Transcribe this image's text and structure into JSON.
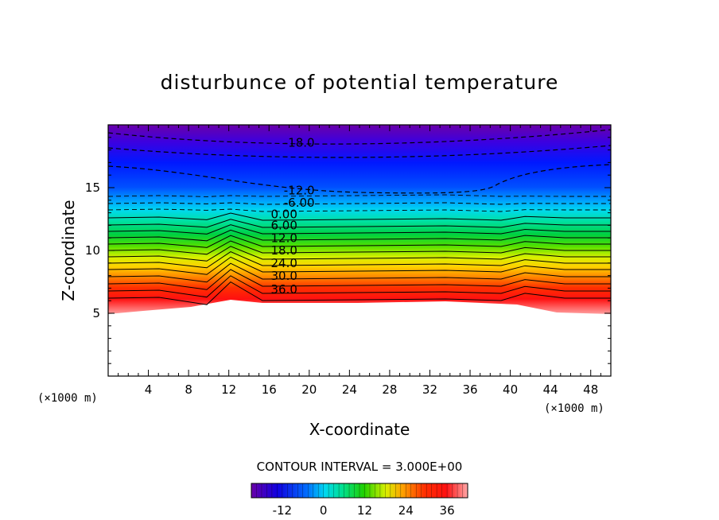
{
  "chart_data": {
    "type": "contour",
    "title": "disturbunce of potential temperature",
    "xlabel": "X-coordinate",
    "ylabel": "Z-coordinate",
    "x_unit": "(×1000 m)",
    "z_unit": "(×1000 m)",
    "xlim": [
      0,
      50
    ],
    "ylim": [
      0,
      20
    ],
    "x_ticks": [
      4,
      8,
      12,
      16,
      20,
      24,
      28,
      32,
      36,
      40,
      44,
      48
    ],
    "y_ticks": [
      5,
      10,
      15
    ],
    "contour_interval": "CONTOUR INTERVAL = 3.000E+00",
    "contour_labels": [
      {
        "label": "-18.0",
        "x": 19,
        "z": 18.4
      },
      {
        "label": "-12.0",
        "x": 19,
        "z": 14.6
      },
      {
        "label": "-6.00",
        "x": 19,
        "z": 13.6
      },
      {
        "label": "0.00",
        "x": 17.5,
        "z": 12.7
      },
      {
        "label": "6.00",
        "x": 17.5,
        "z": 11.8
      },
      {
        "label": "12.0",
        "x": 17.5,
        "z": 10.8
      },
      {
        "label": "18.0",
        "x": 17.5,
        "z": 9.8
      },
      {
        "label": "24.0",
        "x": 17.5,
        "z": 8.8
      },
      {
        "label": "30.0",
        "x": 17.5,
        "z": 7.8
      },
      {
        "label": "36.0",
        "x": 17.5,
        "z": 6.7
      }
    ],
    "colorbar": {
      "min": -21,
      "max": 42,
      "ticks": [
        -12,
        0,
        12,
        24,
        36
      ]
    }
  }
}
